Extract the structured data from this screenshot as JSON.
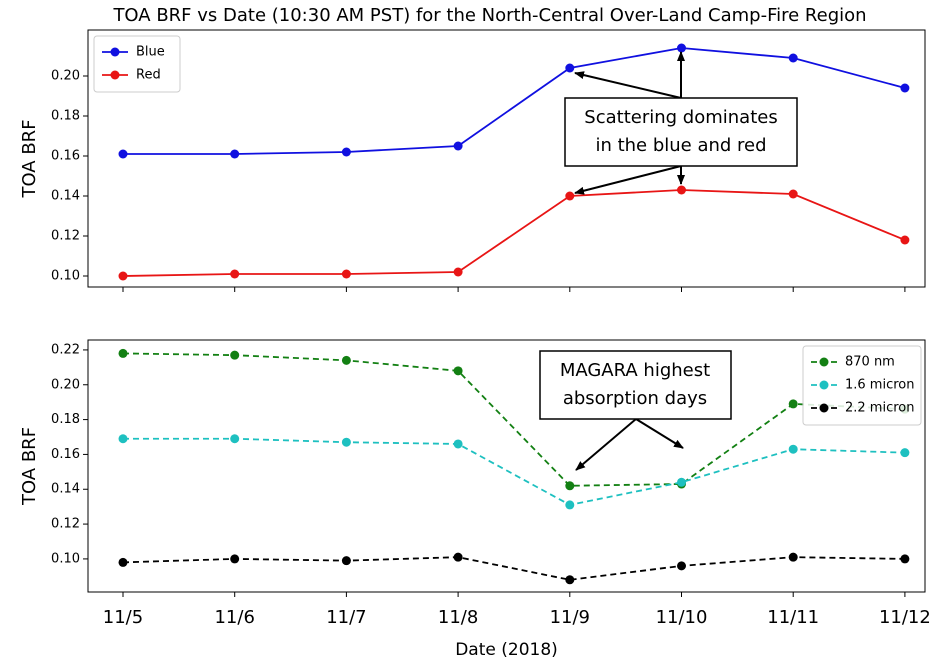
{
  "chart_data": [
    {
      "type": "line",
      "title": "TOA BRF vs Date (10:30 AM PST) for the North-Central Over-Land Camp-Fire Region",
      "ylabel": "TOA BRF",
      "series": [
        {
          "name": "Blue",
          "color": "#1010e0",
          "values": [
            0.161,
            0.161,
            0.162,
            0.165,
            0.204,
            0.214,
            0.209,
            0.194
          ]
        },
        {
          "name": "Red",
          "color": "#e81515",
          "values": [
            0.1,
            0.101,
            0.101,
            0.102,
            0.14,
            0.143,
            0.141,
            0.118
          ]
        }
      ],
      "ylim": [
        0.0945,
        0.223
      ],
      "yticks": [
        {
          "value": 0.1,
          "label": "0.10"
        },
        0.12,
        0.14,
        0.16,
        0.18,
        {
          "value": 0.2,
          "label": "0.20"
        }
      ],
      "legend": "upper left",
      "linestyle": "solid",
      "annotation": [
        "Scattering dominates",
        "in the blue and red"
      ]
    },
    {
      "type": "line",
      "ylabel": "TOA BRF",
      "xlabel": "Date (2018)",
      "categories": [
        "11/5",
        "11/6",
        "11/7",
        "11/8",
        "11/9",
        "11/10",
        "11/11",
        "11/12"
      ],
      "series": [
        {
          "name": "870 nm",
          "color": "#138013",
          "values": [
            0.218,
            0.217,
            0.214,
            0.208,
            0.142,
            0.143,
            0.189,
            0.186
          ]
        },
        {
          "name": "1.6 micron",
          "color": "#1ec0c0",
          "values": [
            0.169,
            0.169,
            0.167,
            0.166,
            0.131,
            0.144,
            0.163,
            0.161
          ]
        },
        {
          "name": "2.2 micron",
          "color": "#000000",
          "values": [
            0.098,
            0.1,
            0.099,
            0.101,
            0.088,
            0.096,
            0.101,
            0.1
          ]
        }
      ],
      "ylim": [
        0.081,
        0.2257
      ],
      "yticks": [
        {
          "value": 0.1,
          "label": "0.10"
        },
        0.12,
        0.14,
        0.16,
        0.18,
        {
          "value": 0.2,
          "label": "0.20"
        },
        0.22
      ],
      "legend": "upper right",
      "linestyle": "dashed",
      "annotation": [
        "MAGARA highest",
        "absorption days"
      ]
    }
  ]
}
